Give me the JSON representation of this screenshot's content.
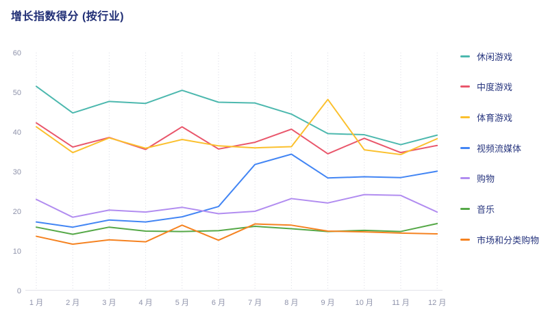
{
  "title": "增长指数得分 (按行业)",
  "chart_data": {
    "type": "line",
    "title": "增长指数得分 (按行业)",
    "xlabel": "",
    "ylabel": "",
    "ylim": [
      0,
      60
    ],
    "yticks": [
      0,
      10,
      20,
      30,
      40,
      50,
      60
    ],
    "grid": "vertical-dotted",
    "legend_position": "right",
    "categories": [
      "1 月",
      "2 月",
      "3 月",
      "4 月",
      "5 月",
      "6 月",
      "7 月",
      "8 月",
      "9 月",
      "10 月",
      "11 月",
      "12 月"
    ],
    "series": [
      {
        "id": "casual-games",
        "name": "休闲游戏",
        "color": "#4cb8ae",
        "values": [
          51.5,
          44.8,
          47.7,
          47.2,
          50.5,
          47.5,
          47.3,
          44.5,
          39.6,
          39.3,
          36.8,
          39.2
        ]
      },
      {
        "id": "midcore-games",
        "name": "中度游戏",
        "color": "#e9566b",
        "values": [
          42.3,
          36.2,
          38.6,
          35.6,
          41.3,
          35.7,
          37.4,
          40.7,
          34.5,
          38.4,
          34.8,
          36.6
        ]
      },
      {
        "id": "sports-games",
        "name": "体育游戏",
        "color": "#fbc02d",
        "values": [
          41.3,
          34.8,
          38.5,
          35.9,
          38.1,
          36.5,
          36.0,
          36.3,
          48.2,
          35.5,
          34.3,
          38.3
        ]
      },
      {
        "id": "video-streaming",
        "name": "视频流媒体",
        "color": "#4285f4",
        "values": [
          17.3,
          16.0,
          17.8,
          17.3,
          18.6,
          21.2,
          31.8,
          34.4,
          28.4,
          28.7,
          28.5,
          30.1
        ]
      },
      {
        "id": "shopping",
        "name": "购物",
        "color": "#b18cf0",
        "values": [
          23.0,
          18.5,
          20.3,
          19.8,
          21.0,
          19.4,
          20.0,
          23.2,
          22.1,
          24.2,
          24.0,
          19.8
        ]
      },
      {
        "id": "music",
        "name": "音乐",
        "color": "#55a847",
        "values": [
          16.0,
          14.2,
          16.0,
          15.0,
          14.9,
          15.1,
          16.2,
          15.6,
          14.9,
          15.2,
          14.9,
          16.9
        ]
      },
      {
        "id": "marketplace-classifieds",
        "name": "市场和分类购物",
        "color": "#f58220",
        "values": [
          13.7,
          11.7,
          12.8,
          12.3,
          16.5,
          12.7,
          16.8,
          16.5,
          15.0,
          14.8,
          14.5,
          14.3
        ]
      }
    ]
  }
}
